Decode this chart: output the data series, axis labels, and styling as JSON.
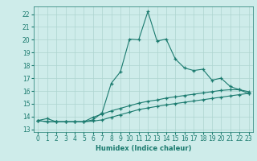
{
  "bg_color": "#ceecea",
  "grid_color": "#aed4d0",
  "line_color": "#1a7a6e",
  "xlabel": "Humidex (Indice chaleur)",
  "xlim": [
    -0.5,
    23.5
  ],
  "ylim": [
    12.8,
    22.6
  ],
  "xticks": [
    0,
    1,
    2,
    3,
    4,
    5,
    6,
    7,
    8,
    9,
    10,
    11,
    12,
    13,
    14,
    15,
    16,
    17,
    18,
    19,
    20,
    21,
    22,
    23
  ],
  "yticks": [
    13,
    14,
    15,
    16,
    17,
    18,
    19,
    20,
    21,
    22
  ],
  "series1_x": [
    0,
    1,
    2,
    3,
    4,
    5,
    6,
    7,
    8,
    9,
    10,
    11,
    12,
    13,
    14,
    15,
    16,
    17,
    18,
    19,
    20,
    21,
    22,
    23
  ],
  "series1_y": [
    13.7,
    13.85,
    13.6,
    13.6,
    13.6,
    13.6,
    13.75,
    14.3,
    16.6,
    17.5,
    20.05,
    20.0,
    22.2,
    19.9,
    20.05,
    18.5,
    17.8,
    17.6,
    17.7,
    16.85,
    17.0,
    16.35,
    16.1,
    15.8
  ],
  "series2_x": [
    0,
    1,
    2,
    3,
    4,
    5,
    6,
    7,
    8,
    9,
    10,
    11,
    12,
    13,
    14,
    15,
    16,
    17,
    18,
    19,
    20,
    21,
    22,
    23
  ],
  "series2_y": [
    13.7,
    13.6,
    13.6,
    13.6,
    13.6,
    13.6,
    13.95,
    14.2,
    14.45,
    14.65,
    14.85,
    15.05,
    15.2,
    15.3,
    15.45,
    15.55,
    15.65,
    15.75,
    15.85,
    15.95,
    16.05,
    16.1,
    16.1,
    15.95
  ],
  "series3_x": [
    0,
    1,
    2,
    3,
    4,
    5,
    6,
    7,
    8,
    9,
    10,
    11,
    12,
    13,
    14,
    15,
    16,
    17,
    18,
    19,
    20,
    21,
    22,
    23
  ],
  "series3_y": [
    13.7,
    13.6,
    13.6,
    13.6,
    13.6,
    13.6,
    13.65,
    13.75,
    13.95,
    14.15,
    14.35,
    14.55,
    14.68,
    14.8,
    14.92,
    15.02,
    15.12,
    15.22,
    15.32,
    15.42,
    15.52,
    15.62,
    15.72,
    15.82
  ]
}
